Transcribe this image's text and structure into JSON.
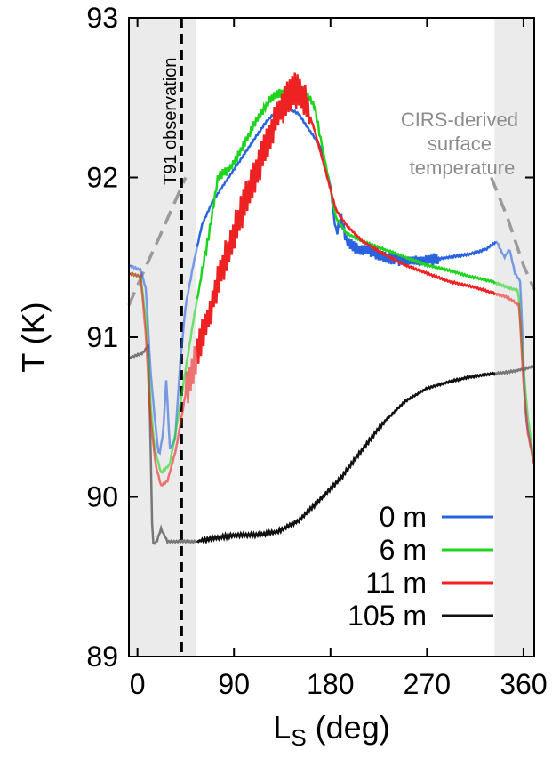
{
  "chart_data": {
    "type": "line",
    "xlabel_main": "L",
    "xlabel_sub": "S",
    "xlabel_rest": " (deg)",
    "ylabel": "T (K)",
    "xlim": [
      -8,
      370
    ],
    "ylim": [
      89,
      93
    ],
    "x_ticks": [
      0,
      90,
      180,
      270,
      360
    ],
    "x_tick_labels": [
      "0",
      "90",
      "180",
      "270",
      "360"
    ],
    "y_ticks": [
      89,
      90,
      91,
      92,
      93
    ],
    "y_tick_labels": [
      "89",
      "90",
      "91",
      "92",
      "93"
    ],
    "grid": false,
    "legend_position": "bottom-right",
    "shaded_regions": [
      [
        -8,
        55
      ],
      [
        333,
        370
      ]
    ],
    "annotations": {
      "observation": {
        "label": "T91 observation",
        "x": 41
      },
      "surface_temp": {
        "label_lines": [
          "CIRS-derived",
          "surface",
          "temperature"
        ],
        "color": "#9a9a9a"
      }
    },
    "surface_temp_curve": [
      [
        -8,
        91.2
      ],
      [
        5,
        91.4
      ],
      [
        20,
        91.62
      ],
      [
        35,
        91.85
      ],
      [
        45,
        92.0
      ]
    ],
    "surface_temp_curve_right": [
      [
        330,
        92.0
      ],
      [
        345,
        91.75
      ],
      [
        360,
        91.45
      ],
      [
        370,
        91.3
      ]
    ],
    "series": [
      {
        "name": "0 m",
        "color": "#2a63e0",
        "points": [
          [
            -8,
            91.45
          ],
          [
            3,
            91.42
          ],
          [
            8,
            91.3
          ],
          [
            12,
            90.8
          ],
          [
            16,
            90.5
          ],
          [
            20,
            90.25
          ],
          [
            24,
            90.4
          ],
          [
            27,
            90.75
          ],
          [
            30,
            90.3
          ],
          [
            35,
            90.35
          ],
          [
            40,
            90.85
          ],
          [
            45,
            91.2
          ],
          [
            52,
            91.45
          ],
          [
            60,
            91.7
          ],
          [
            70,
            91.85
          ],
          [
            80,
            91.95
          ],
          [
            90,
            92.05
          ],
          [
            105,
            92.2
          ],
          [
            120,
            92.35
          ],
          [
            135,
            92.45
          ],
          [
            150,
            92.4
          ],
          [
            160,
            92.3
          ],
          [
            170,
            92.2
          ],
          [
            180,
            91.95
          ],
          [
            185,
            91.65
          ],
          [
            190,
            91.75
          ],
          [
            195,
            91.6
          ],
          [
            205,
            91.55
          ],
          [
            215,
            91.55
          ],
          [
            230,
            91.5
          ],
          [
            250,
            91.48
          ],
          [
            270,
            91.48
          ],
          [
            290,
            91.5
          ],
          [
            310,
            91.52
          ],
          [
            325,
            91.55
          ],
          [
            335,
            91.6
          ],
          [
            342,
            91.5
          ],
          [
            347,
            91.55
          ],
          [
            352,
            91.4
          ],
          [
            357,
            91.35
          ],
          [
            362,
            90.5
          ],
          [
            370,
            90.2
          ]
        ]
      },
      {
        "name": "6 m",
        "color": "#1fd41f",
        "points": [
          [
            -8,
            91.4
          ],
          [
            3,
            91.38
          ],
          [
            8,
            91.1
          ],
          [
            12,
            90.6
          ],
          [
            16,
            90.3
          ],
          [
            22,
            90.15
          ],
          [
            30,
            90.2
          ],
          [
            38,
            90.5
          ],
          [
            45,
            90.8
          ],
          [
            52,
            91.1
          ],
          [
            60,
            91.4
          ],
          [
            68,
            91.7
          ],
          [
            75,
            92.0
          ],
          [
            85,
            92.05
          ],
          [
            95,
            92.15
          ],
          [
            110,
            92.35
          ],
          [
            125,
            92.5
          ],
          [
            140,
            92.55
          ],
          [
            155,
            92.55
          ],
          [
            165,
            92.45
          ],
          [
            175,
            92.1
          ],
          [
            185,
            91.75
          ],
          [
            195,
            91.65
          ],
          [
            210,
            91.6
          ],
          [
            230,
            91.55
          ],
          [
            250,
            91.5
          ],
          [
            270,
            91.45
          ],
          [
            290,
            91.42
          ],
          [
            310,
            91.38
          ],
          [
            330,
            91.35
          ],
          [
            350,
            91.3
          ],
          [
            355,
            91.3
          ],
          [
            360,
            90.8
          ],
          [
            364,
            90.5
          ],
          [
            370,
            90.2
          ]
        ]
      },
      {
        "name": "11 m",
        "color": "#ee2222",
        "points": [
          [
            -8,
            91.4
          ],
          [
            3,
            91.38
          ],
          [
            8,
            91.0
          ],
          [
            12,
            90.5
          ],
          [
            17,
            90.2
          ],
          [
            22,
            90.07
          ],
          [
            28,
            90.1
          ],
          [
            36,
            90.3
          ],
          [
            45,
            90.65
          ],
          [
            55,
            90.9
          ],
          [
            65,
            91.1
          ],
          [
            75,
            91.35
          ],
          [
            85,
            91.55
          ],
          [
            95,
            91.75
          ],
          [
            105,
            91.95
          ],
          [
            115,
            92.1
          ],
          [
            125,
            92.3
          ],
          [
            135,
            92.45
          ],
          [
            145,
            92.55
          ],
          [
            155,
            92.5
          ],
          [
            165,
            92.3
          ],
          [
            175,
            92.05
          ],
          [
            185,
            91.8
          ],
          [
            195,
            91.7
          ],
          [
            210,
            91.6
          ],
          [
            230,
            91.52
          ],
          [
            250,
            91.45
          ],
          [
            270,
            91.4
          ],
          [
            290,
            91.35
          ],
          [
            310,
            91.32
          ],
          [
            330,
            91.28
          ],
          [
            345,
            91.25
          ],
          [
            356,
            91.2
          ],
          [
            360,
            90.7
          ],
          [
            364,
            90.4
          ],
          [
            370,
            90.2
          ]
        ]
      },
      {
        "name": "105 m",
        "color": "#111111",
        "color_alt": "#777777",
        "points": [
          [
            -8,
            90.87
          ],
          [
            5,
            90.9
          ],
          [
            10,
            90.95
          ],
          [
            12,
            90.4
          ],
          [
            14,
            89.7
          ],
          [
            18,
            89.72
          ],
          [
            22,
            89.8
          ],
          [
            28,
            89.72
          ],
          [
            40,
            89.72
          ],
          [
            55,
            89.72
          ],
          [
            70,
            89.74
          ],
          [
            90,
            89.76
          ],
          [
            110,
            89.76
          ],
          [
            130,
            89.78
          ],
          [
            150,
            89.85
          ],
          [
            170,
            89.98
          ],
          [
            190,
            90.12
          ],
          [
            210,
            90.3
          ],
          [
            230,
            90.47
          ],
          [
            250,
            90.6
          ],
          [
            270,
            90.68
          ],
          [
            290,
            90.72
          ],
          [
            310,
            90.75
          ],
          [
            330,
            90.77
          ],
          [
            345,
            90.78
          ],
          [
            360,
            90.8
          ],
          [
            370,
            90.82
          ]
        ]
      }
    ]
  }
}
